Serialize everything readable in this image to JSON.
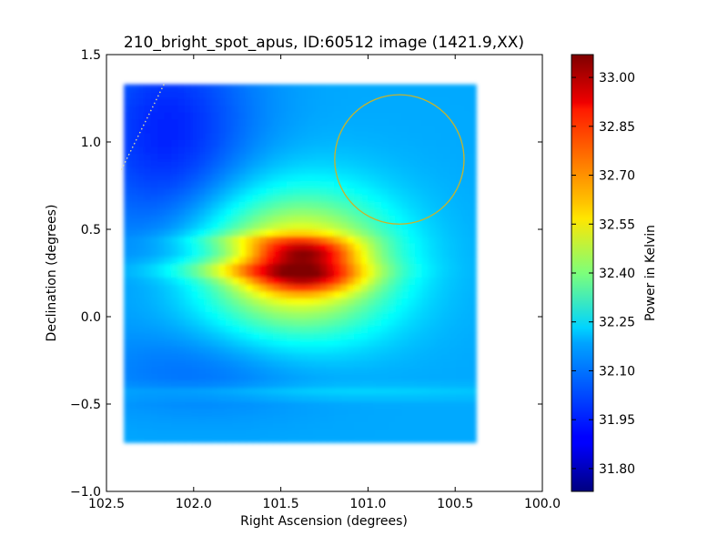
{
  "chart_data": {
    "type": "heatmap",
    "title": "210_bright_spot_apus, ID:60512 image (1421.9,XX)",
    "xlabel": "Right Ascension (degrees)",
    "ylabel": "Declination (degrees)",
    "xlim": [
      102.5,
      100.0
    ],
    "ylim": [
      -1.0,
      1.5
    ],
    "x_ticks": [
      102.5,
      102.0,
      101.5,
      101.0,
      100.5,
      100.0
    ],
    "x_tick_labels": [
      "102.5",
      "102.0",
      "101.5",
      "101.0",
      "100.5",
      "100.0"
    ],
    "y_ticks": [
      -1.0,
      -0.5,
      0.0,
      0.5,
      1.0,
      1.5
    ],
    "y_tick_labels": [
      "−1.0",
      "−0.5",
      "0.0",
      "0.5",
      "1.0",
      "1.5"
    ],
    "colorbar": {
      "label": "Power in Kelvin",
      "range": [
        31.73,
        33.07
      ],
      "colormap": "jet",
      "ticks": [
        31.8,
        31.95,
        32.1,
        32.25,
        32.4,
        32.55,
        32.7,
        32.85,
        33.0
      ],
      "tick_labels": [
        "31.80",
        "31.95",
        "32.10",
        "32.25",
        "32.40",
        "32.55",
        "32.70",
        "32.85",
        "33.00"
      ]
    },
    "map_extent": {
      "ra": [
        102.4,
        100.38
      ],
      "dec": [
        -0.72,
        1.33
      ]
    },
    "background_level": 32.12,
    "components": [
      {
        "ra": 101.4,
        "dec": 0.3,
        "sigma_ra": 0.38,
        "sigma_dec": 0.28,
        "amplitude": 0.55
      },
      {
        "ra": 101.36,
        "dec": 0.37,
        "sigma_ra": 0.2,
        "sigma_dec": 0.05,
        "amplitude": 0.38
      },
      {
        "ra": 101.36,
        "dec": 0.22,
        "sigma_ra": 0.22,
        "sigma_dec": 0.06,
        "amplitude": 0.33
      },
      {
        "ra": 101.6,
        "dec": 0.27,
        "sigma_ra": 0.4,
        "sigma_dec": 0.04,
        "amplitude": 0.2
      },
      {
        "ra": 101.6,
        "dec": 0.44,
        "sigma_ra": 0.35,
        "sigma_dec": 0.03,
        "amplitude": 0.12
      },
      {
        "ra": 102.15,
        "dec": 1.05,
        "sigma_ra": 0.35,
        "sigma_dec": 0.45,
        "amplitude": -0.18
      },
      {
        "ra": 101.9,
        "dec": -0.3,
        "sigma_ra": 0.5,
        "sigma_dec": 0.18,
        "amplitude": -0.08
      },
      {
        "ra": 101.3,
        "dec": -0.43,
        "sigma_ra": 0.9,
        "sigma_dec": 0.03,
        "amplitude": 0.06
      }
    ],
    "overlays": {
      "circle": {
        "ra": 100.82,
        "dec": 0.9,
        "radius_deg": 0.37,
        "color": "#c8b42a"
      },
      "dotted_line": {
        "ra": [
          102.17,
          102.42
        ],
        "dec": [
          1.33,
          0.83
        ],
        "color": "#e8e4a0"
      }
    }
  }
}
